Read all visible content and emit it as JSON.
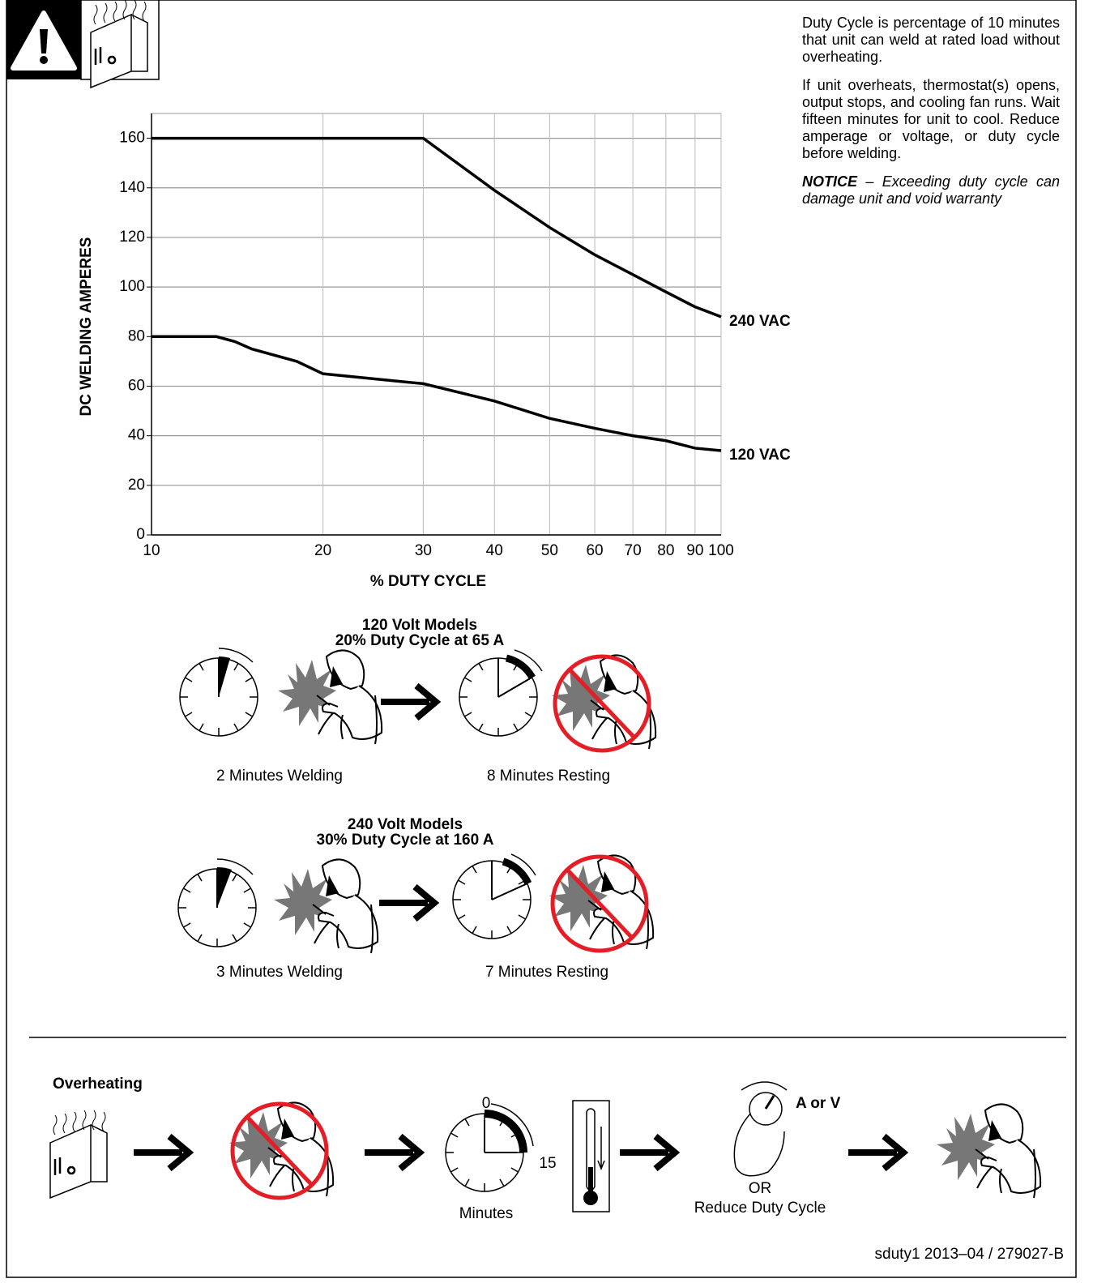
{
  "notes": {
    "paragraphs": [
      "Duty Cycle is percentage of 10 minutes that unit can weld at rated load without overheating.",
      "If unit overheats, thermostat(s) opens, output stops, and cooling fan runs. Wait fifteen minutes for unit to cool. Reduce amperage or voltage, or duty cycle before welding."
    ],
    "notice_label": "NOTICE",
    "notice_text": "– Exceeding duty cycle can damage unit and void warranty"
  },
  "chart_data": {
    "type": "line",
    "xlabel": "% DUTY CYCLE",
    "ylabel": "DC WELDING AMPERES",
    "xscale": "log",
    "xlim": [
      10,
      100
    ],
    "xticks": [
      10,
      20,
      30,
      40,
      50,
      60,
      70,
      80,
      90,
      100
    ],
    "ylim": [
      0,
      170
    ],
    "yticks": [
      0,
      20,
      40,
      60,
      80,
      100,
      120,
      140,
      160
    ],
    "grid": true,
    "series": [
      {
        "name": "240 VAC",
        "color": "#000000",
        "x": [
          10,
          20,
          30,
          40,
          50,
          60,
          70,
          80,
          90,
          100
        ],
        "values": [
          160,
          160,
          160,
          139,
          124,
          113,
          105,
          98,
          92,
          88
        ]
      },
      {
        "name": "120 VAC",
        "color": "#000000",
        "x": [
          10,
          13,
          14,
          15,
          18,
          20,
          30,
          40,
          50,
          60,
          70,
          80,
          90,
          100
        ],
        "values": [
          80,
          80,
          78,
          75,
          70,
          65,
          61,
          54,
          47,
          43,
          40,
          38,
          35,
          34
        ]
      }
    ]
  },
  "examples": [
    {
      "title": "120 Volt Models",
      "subtitle": "20% Duty Cycle at 65 A",
      "welding": "2 Minutes Welding",
      "resting": "8 Minutes Resting"
    },
    {
      "title": "240 Volt Models",
      "subtitle": "30% Duty Cycle at 160 A",
      "welding": "3 Minutes Welding",
      "resting": "7 Minutes Resting"
    }
  ],
  "overheating": {
    "title": "Overheating",
    "clock_start": "0",
    "clock_end": "15",
    "clock_label": "Minutes",
    "control_label": "A or V",
    "or": "OR",
    "reduce": "Reduce Duty Cycle"
  },
  "footer": "sduty1 2013–04 / 279027-B"
}
